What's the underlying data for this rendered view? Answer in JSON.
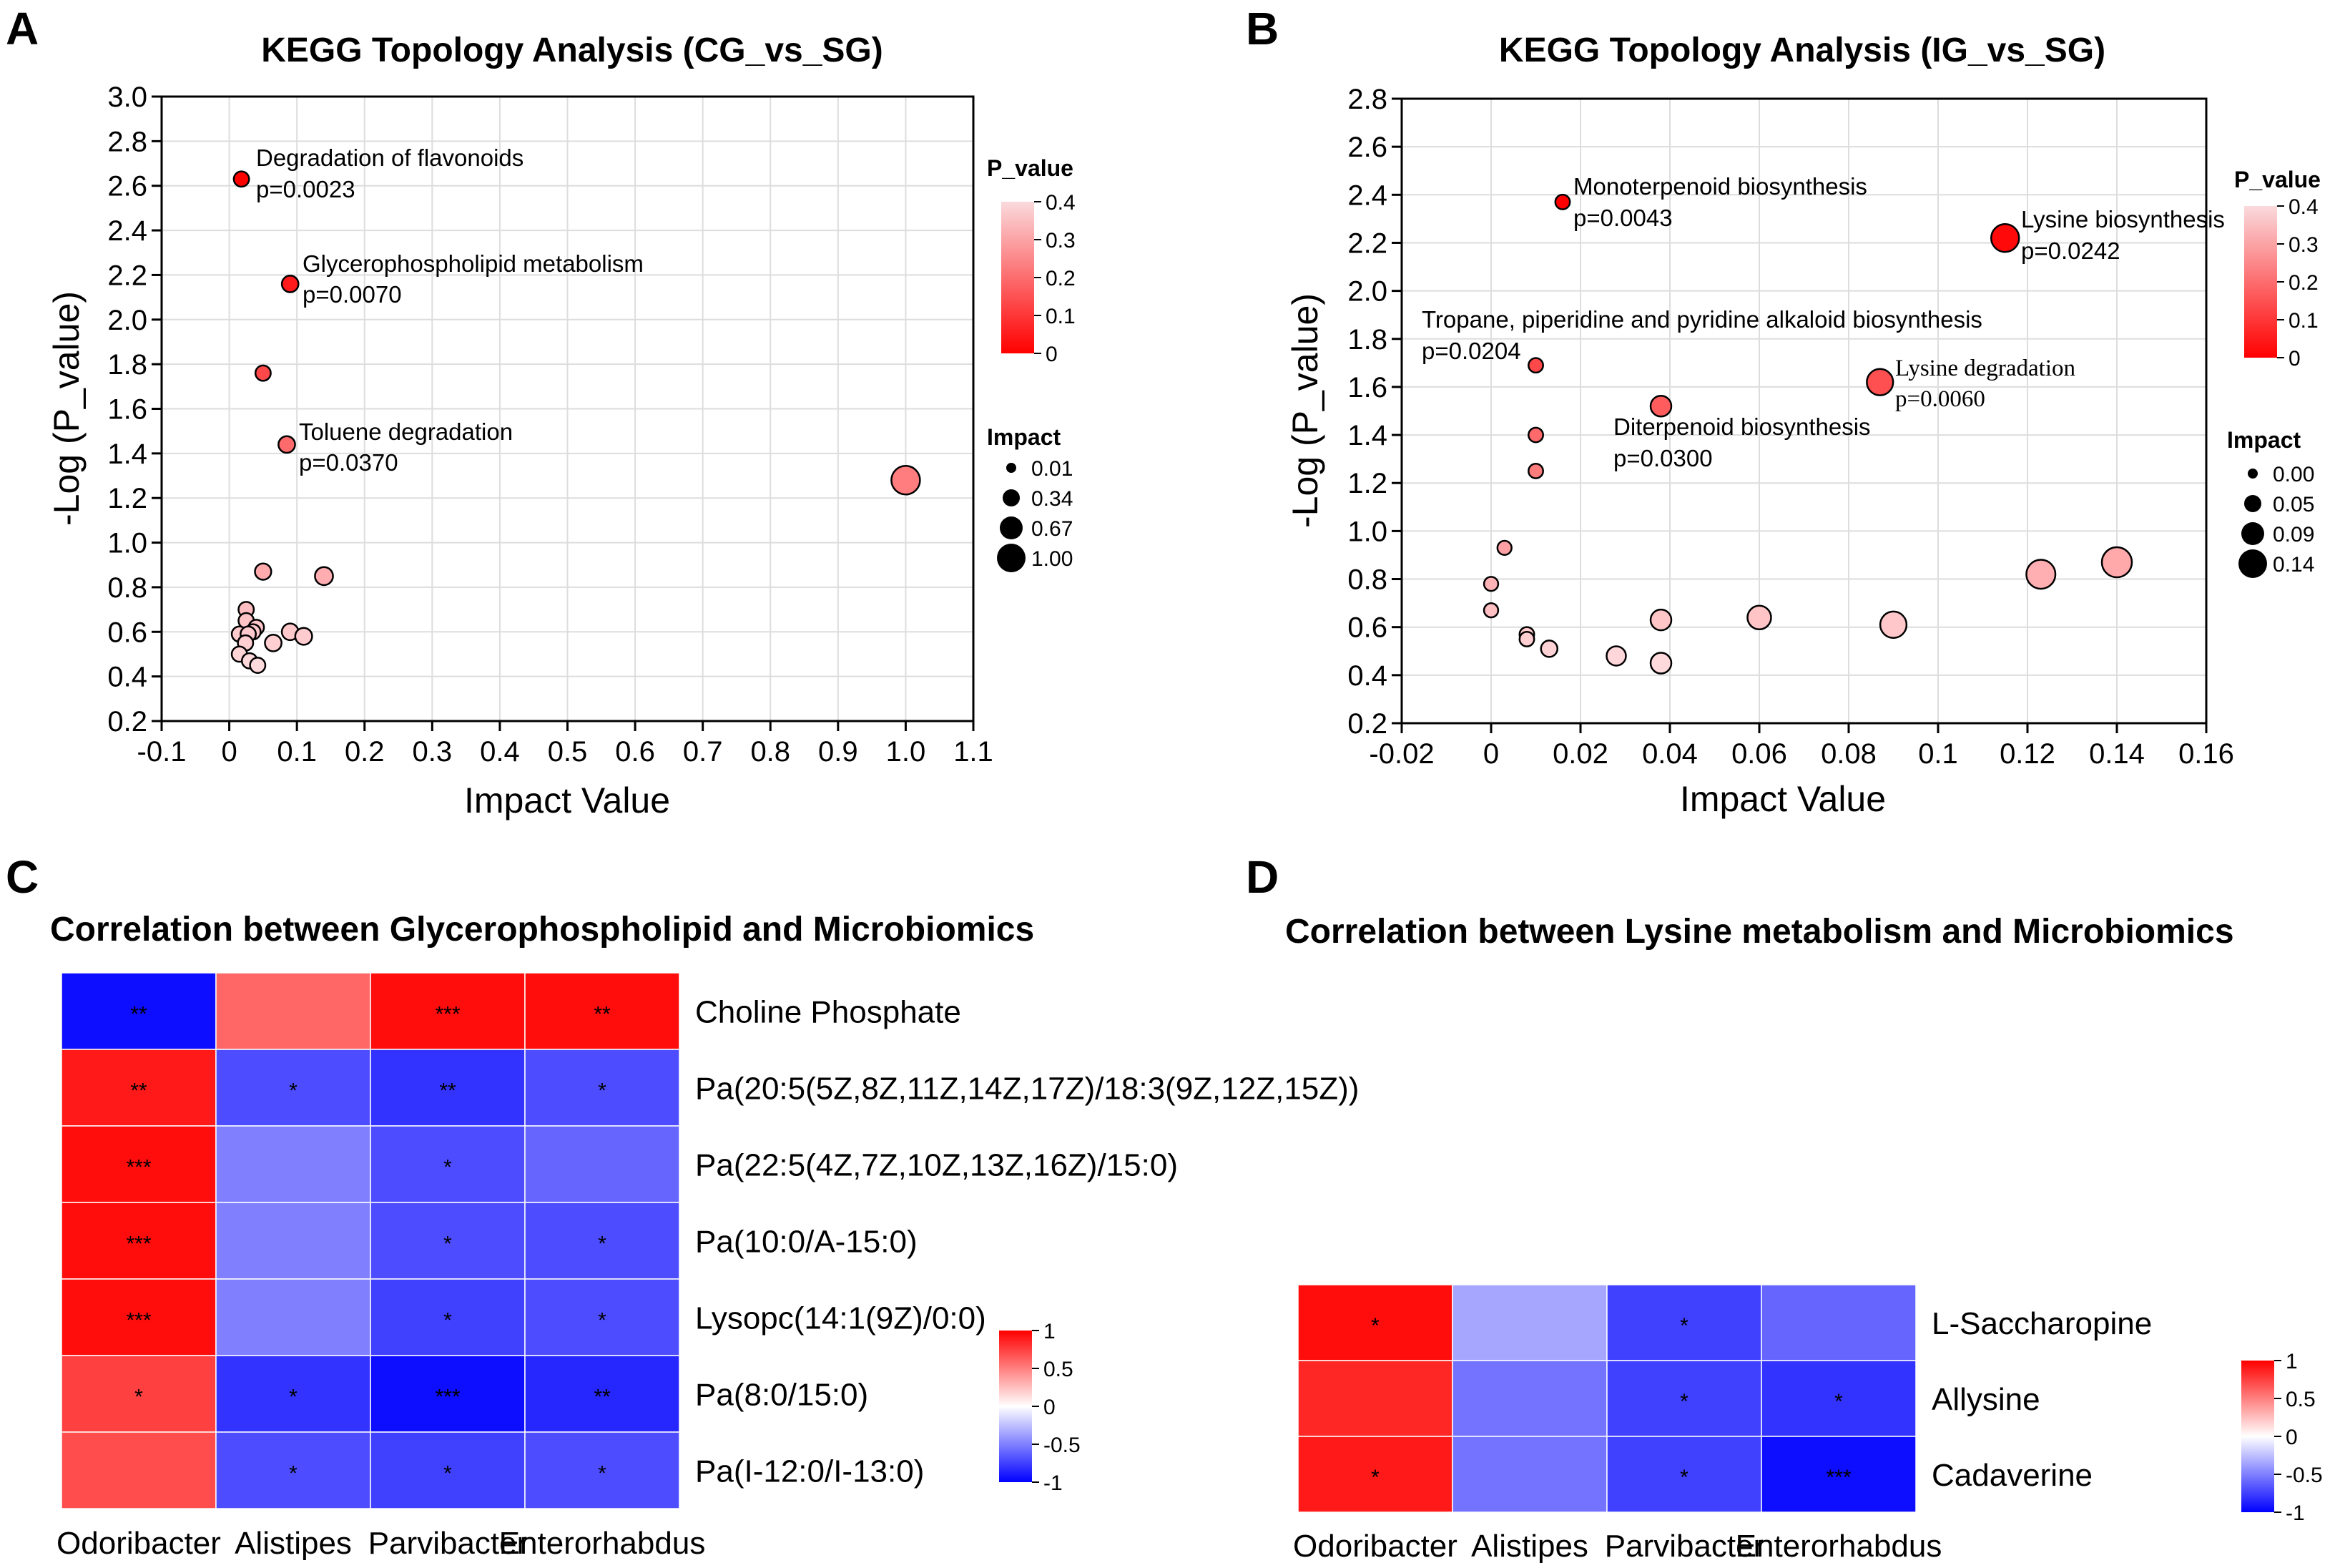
{
  "chart_data": [
    {
      "panel": "A",
      "type": "scatter",
      "title": "KEGG Topology Analysis (CG_vs_SG)",
      "xlabel": "Impact Value",
      "ylabel": "-Log (P_value)",
      "xlim": [
        -0.1,
        1.1
      ],
      "ylim": [
        0.2,
        3.0
      ],
      "xticks": [
        "-0.1",
        "0",
        "0.1",
        "0.2",
        "0.3",
        "0.4",
        "0.5",
        "0.6",
        "0.7",
        "0.8",
        "0.9",
        "1.0",
        "1.1"
      ],
      "yticks": [
        "0.2",
        "0.4",
        "0.6",
        "0.8",
        "1.0",
        "1.2",
        "1.4",
        "1.6",
        "1.8",
        "2.0",
        "2.2",
        "2.4",
        "2.6",
        "2.8",
        "3.0"
      ],
      "grid": true,
      "color_legend": {
        "title": "P_value",
        "ticks": [
          "0.4",
          "0.3",
          "0.2",
          "0.1",
          "0"
        ]
      },
      "size_legend": {
        "title": "Impact",
        "entries": [
          "0.01",
          "0.34",
          "0.67",
          "1.00"
        ]
      },
      "points": [
        {
          "x": 0.018,
          "y": 2.63,
          "impact": 0.05
        },
        {
          "x": 0.09,
          "y": 2.16,
          "impact": 0.09
        },
        {
          "x": 0.05,
          "y": 1.76,
          "impact": 0.05
        },
        {
          "x": 0.085,
          "y": 1.44,
          "impact": 0.09
        },
        {
          "x": 1.0,
          "y": 1.28,
          "impact": 1.0
        },
        {
          "x": 0.05,
          "y": 0.87,
          "impact": 0.08
        },
        {
          "x": 0.14,
          "y": 0.85,
          "impact": 0.15
        },
        {
          "x": 0.025,
          "y": 0.7,
          "impact": 0.05
        },
        {
          "x": 0.025,
          "y": 0.65,
          "impact": 0.05
        },
        {
          "x": 0.04,
          "y": 0.62,
          "impact": 0.05
        },
        {
          "x": 0.035,
          "y": 0.6,
          "impact": 0.05
        },
        {
          "x": 0.015,
          "y": 0.59,
          "impact": 0.05
        },
        {
          "x": 0.028,
          "y": 0.59,
          "impact": 0.05
        },
        {
          "x": 0.09,
          "y": 0.6,
          "impact": 0.09
        },
        {
          "x": 0.11,
          "y": 0.58,
          "impact": 0.1
        },
        {
          "x": 0.024,
          "y": 0.55,
          "impact": 0.05
        },
        {
          "x": 0.065,
          "y": 0.55,
          "impact": 0.09
        },
        {
          "x": 0.015,
          "y": 0.5,
          "impact": 0.05
        },
        {
          "x": 0.03,
          "y": 0.47,
          "impact": 0.05
        },
        {
          "x": 0.042,
          "y": 0.45,
          "impact": 0.05
        }
      ],
      "annotations": [
        {
          "name": "Degradation of flavonoids",
          "p": "p=0.0023"
        },
        {
          "name": "Glycerophospholipid metabolism",
          "p": "p=0.0070"
        },
        {
          "name": "Toluene degradation",
          "p": "p=0.0370"
        }
      ]
    },
    {
      "panel": "B",
      "type": "scatter",
      "title": "KEGG Topology Analysis (IG_vs_SG)",
      "xlabel": "Impact Value",
      "ylabel": "-Log (P_value)",
      "xlim": [
        -0.02,
        0.16
      ],
      "ylim": [
        0.2,
        2.8
      ],
      "xticks": [
        "-0.02",
        "0",
        "0.02",
        "0.04",
        "0.06",
        "0.08",
        "0.1",
        "0.12",
        "0.14",
        "0.16"
      ],
      "yticks": [
        "0.2",
        "0.4",
        "0.6",
        "0.8",
        "1.0",
        "1.2",
        "1.4",
        "1.6",
        "1.8",
        "2.0",
        "2.2",
        "2.4",
        "2.6",
        "2.8"
      ],
      "grid": true,
      "color_legend": {
        "title": "P_value",
        "ticks": [
          "0.4",
          "0.3",
          "0.2",
          "0.1",
          "0"
        ]
      },
      "size_legend": {
        "title": "Impact",
        "entries": [
          "0.00",
          "0.05",
          "0.09",
          "0.14"
        ]
      },
      "points": [
        {
          "x": 0.016,
          "y": 2.37,
          "impact": 0.004
        },
        {
          "x": 0.115,
          "y": 2.22,
          "impact": 0.11
        },
        {
          "x": 0.01,
          "y": 1.69,
          "impact": 0.004
        },
        {
          "x": 0.087,
          "y": 1.62,
          "impact": 0.09
        },
        {
          "x": 0.038,
          "y": 1.52,
          "impact": 0.035
        },
        {
          "x": 0.01,
          "y": 1.4,
          "impact": 0.004
        },
        {
          "x": 0.01,
          "y": 1.25,
          "impact": 0.004
        },
        {
          "x": 0.003,
          "y": 0.93,
          "impact": 0.003
        },
        {
          "x": 0.14,
          "y": 0.87,
          "impact": 0.14
        },
        {
          "x": 0.123,
          "y": 0.82,
          "impact": 0.125
        },
        {
          "x": 0.0,
          "y": 0.78,
          "impact": 0.003
        },
        {
          "x": 0.0,
          "y": 0.67,
          "impact": 0.003
        },
        {
          "x": 0.06,
          "y": 0.64,
          "impact": 0.06
        },
        {
          "x": 0.038,
          "y": 0.63,
          "impact": 0.035
        },
        {
          "x": 0.09,
          "y": 0.61,
          "impact": 0.09
        },
        {
          "x": 0.008,
          "y": 0.57,
          "impact": 0.004
        },
        {
          "x": 0.008,
          "y": 0.55,
          "impact": 0.004
        },
        {
          "x": 0.013,
          "y": 0.51,
          "impact": 0.01
        },
        {
          "x": 0.028,
          "y": 0.48,
          "impact": 0.025
        },
        {
          "x": 0.038,
          "y": 0.45,
          "impact": 0.035
        }
      ],
      "annotations": [
        {
          "name": "Monoterpenoid biosynthesis",
          "p": "p=0.0043"
        },
        {
          "name": "Lysine biosynthesis",
          "p": "p=0.0242"
        },
        {
          "name": "Tropane, piperidine and pyridine alkaloid biosynthesis",
          "p": "p=0.0204"
        },
        {
          "name": "Lysine degradation",
          "p": "p=0.0060"
        },
        {
          "name": "Diterpenoid biosynthesis",
          "p": "p=0.0300"
        }
      ]
    },
    {
      "panel": "C",
      "type": "heatmap",
      "title": "Correlation between Glycerophospholipid and Microbiomics",
      "columns": [
        "Odoribacter",
        "Alistipes",
        "Parvibacter",
        "Enterorhabdus"
      ],
      "rows": [
        "Choline Phosphate",
        "Pa(20:5(5Z,8Z,11Z,14Z,17Z)/18:3(9Z,12Z,15Z))",
        "Pa(22:5(4Z,7Z,10Z,13Z,16Z)/15:0)",
        "Pa(10:0/A-15:0)",
        "Lysopc(14:1(9Z)/0:0)",
        "Pa(8:0/15:0)",
        "Pa(I-12:0/I-13:0)"
      ],
      "values": [
        [
          -0.95,
          0.6,
          0.95,
          0.95
        ],
        [
          0.9,
          -0.7,
          -0.8,
          -0.7
        ],
        [
          0.95,
          -0.5,
          -0.7,
          -0.6
        ],
        [
          0.95,
          -0.5,
          -0.7,
          -0.7
        ],
        [
          0.95,
          -0.5,
          -0.75,
          -0.7
        ],
        [
          0.75,
          -0.8,
          -0.95,
          -0.85
        ],
        [
          0.7,
          -0.7,
          -0.75,
          -0.7
        ]
      ],
      "stars": [
        [
          "**",
          "",
          "***",
          "**"
        ],
        [
          "**",
          "*",
          "**",
          "*"
        ],
        [
          "***",
          "",
          "*",
          ""
        ],
        [
          "***",
          "",
          "*",
          "*"
        ],
        [
          "***",
          "",
          "*",
          "*"
        ],
        [
          "*",
          "*",
          "***",
          "**"
        ],
        [
          "",
          "*",
          "*",
          "*"
        ]
      ],
      "color_legend": {
        "range": [
          -1,
          1
        ],
        "ticks": [
          "1",
          "0.5",
          "0",
          "-0.5",
          "-1"
        ]
      }
    },
    {
      "panel": "D",
      "type": "heatmap",
      "title": "Correlation between Lysine metabolism and Microbiomics",
      "columns": [
        "Odoribacter",
        "Alistipes",
        "Parvibacter",
        "Enterorhabdus"
      ],
      "rows": [
        "L-Saccharopine",
        "Allysine",
        "Cadaverine"
      ],
      "values": [
        [
          0.95,
          -0.35,
          -0.75,
          -0.6
        ],
        [
          0.85,
          -0.55,
          -0.75,
          -0.8
        ],
        [
          0.9,
          -0.55,
          -0.75,
          -0.95
        ]
      ],
      "stars": [
        [
          "*",
          "",
          "*",
          ""
        ],
        [
          "",
          "",
          "*",
          "*"
        ],
        [
          "*",
          "",
          "*",
          "***"
        ]
      ],
      "color_legend": {
        "range": [
          -1,
          1
        ],
        "ticks": [
          "1",
          "0.5",
          "0",
          "-0.5",
          "-1"
        ]
      }
    }
  ]
}
